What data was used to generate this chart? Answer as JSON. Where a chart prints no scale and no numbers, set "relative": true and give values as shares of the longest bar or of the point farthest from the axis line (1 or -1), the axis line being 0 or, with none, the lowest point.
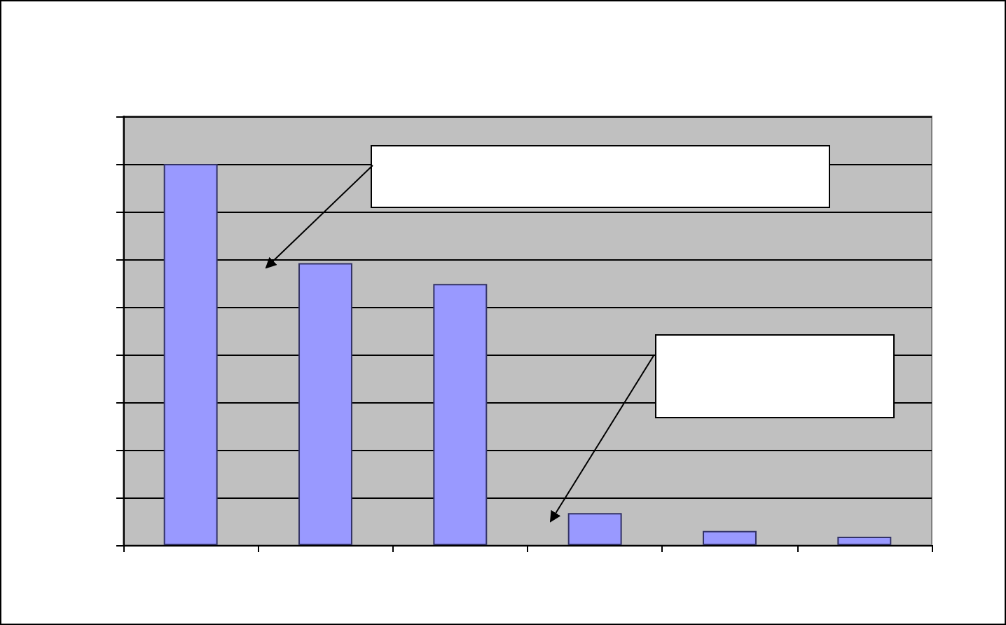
{
  "chart_data": {
    "type": "bar",
    "relative": true,
    "categories": [
      null,
      null,
      null,
      null,
      null,
      null
    ],
    "values": [
      1,
      0.74,
      0.685,
      0.084,
      0.037,
      0.022
    ],
    "color": "#9999ff",
    "grid": "y"
  }
}
